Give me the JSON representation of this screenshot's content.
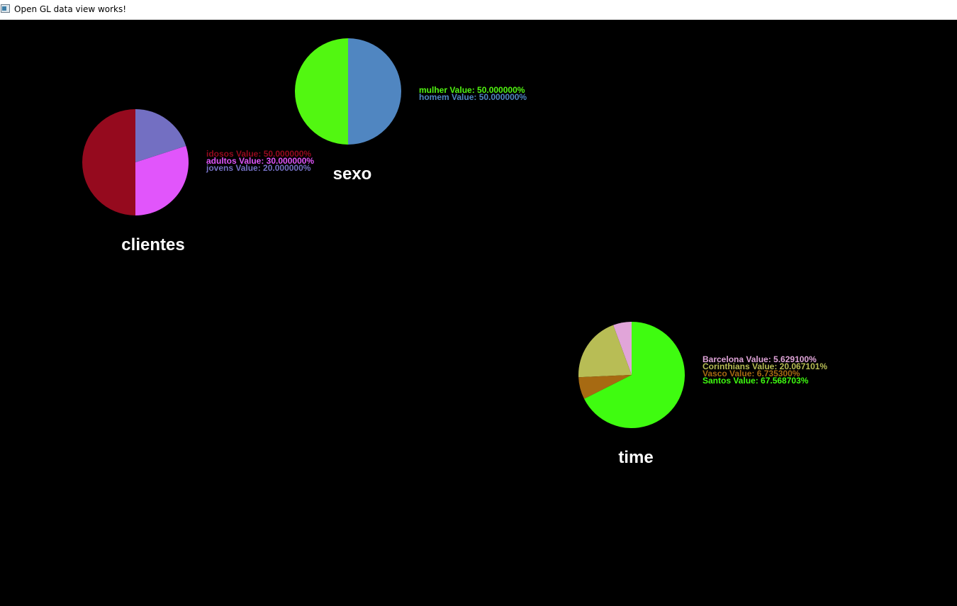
{
  "window": {
    "title": "Open GL data view works!",
    "icon": "app-window-icon"
  },
  "chart_data": [
    {
      "type": "pie",
      "title": "clientes",
      "slices": [
        {
          "label": "idosos",
          "value": 50.0,
          "color": "#950a1e",
          "legend": "idosos  Value: 50.000000%"
        },
        {
          "label": "adultos",
          "value": 30.0,
          "color": "#e155fb",
          "legend": "adultos  Value: 30.000000%"
        },
        {
          "label": "jovens",
          "value": 20.0,
          "color": "#736fc2",
          "legend": "jovens  Value: 20.000000%"
        }
      ]
    },
    {
      "type": "pie",
      "title": "sexo",
      "slices": [
        {
          "label": "mulher",
          "value": 50.0,
          "color": "#52f711",
          "legend": "mulher  Value: 50.000000%"
        },
        {
          "label": "homem",
          "value": 50.0,
          "color": "#5086c1",
          "legend": "homem  Value: 50.000000%"
        }
      ]
    },
    {
      "type": "pie",
      "title": "time",
      "slices": [
        {
          "label": "Barcelona",
          "value": 5.6291,
          "color": "#e1a5d9",
          "legend": "Barcelona  Value: 5.629100%"
        },
        {
          "label": "Corinthians",
          "value": 20.067101,
          "color": "#b8bd55",
          "legend": "Corinthians  Value: 20.067101%"
        },
        {
          "label": "Vasco",
          "value": 6.7353,
          "color": "#a76a12",
          "legend": "Vasco  Value: 6.735300%"
        },
        {
          "label": "Santos",
          "value": 67.568703,
          "color": "#3ffc10",
          "legend": "Santos  Value: 67.568703%"
        }
      ]
    }
  ]
}
